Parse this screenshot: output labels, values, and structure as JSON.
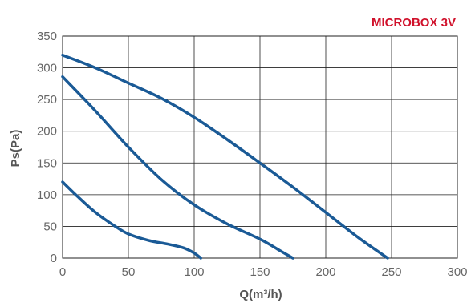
{
  "chart_data": {
    "type": "line",
    "title": "MICROBOX 3V",
    "title_color": "#d0112b",
    "xlabel": "Q(m³/h)",
    "ylabel": "Ps(Pa)",
    "xlim": [
      0,
      300
    ],
    "ylim": [
      0,
      350
    ],
    "x_ticks": [
      "0",
      "50",
      "100",
      "150",
      "200",
      "250",
      "300"
    ],
    "y_ticks": [
      "0",
      "50",
      "100",
      "150",
      "200",
      "250",
      "300",
      "350"
    ],
    "grid": true,
    "line_color": "#1a5a96",
    "series": [
      {
        "points": [
          [
            0,
            320
          ],
          [
            25,
            300
          ],
          [
            50,
            276
          ],
          [
            75,
            252
          ],
          [
            100,
            222
          ],
          [
            125,
            187
          ],
          [
            150,
            150
          ],
          [
            175,
            112
          ],
          [
            200,
            72
          ],
          [
            225,
            32
          ],
          [
            247,
            0
          ]
        ]
      },
      {
        "points": [
          [
            0,
            286
          ],
          [
            25,
            232
          ],
          [
            50,
            175
          ],
          [
            75,
            124
          ],
          [
            100,
            84
          ],
          [
            125,
            54
          ],
          [
            150,
            30
          ],
          [
            165,
            12
          ],
          [
            175,
            0
          ]
        ]
      },
      {
        "points": [
          [
            0,
            120
          ],
          [
            12,
            96
          ],
          [
            25,
            72
          ],
          [
            40,
            50
          ],
          [
            50,
            38
          ],
          [
            65,
            28
          ],
          [
            80,
            22
          ],
          [
            92,
            16
          ],
          [
            100,
            8
          ],
          [
            105,
            0
          ]
        ]
      }
    ]
  }
}
